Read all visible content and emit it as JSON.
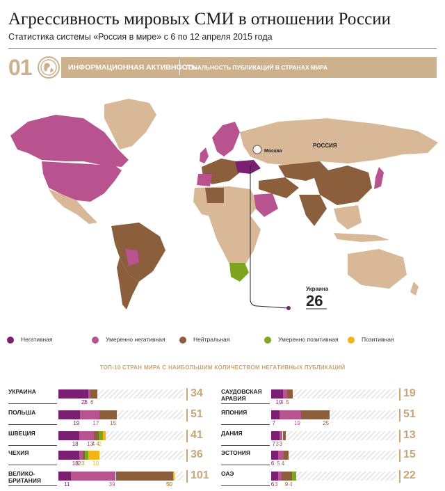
{
  "header": {
    "title": "Агрессивность мировых СМИ в отношении России",
    "subtitle": "Статистика системы «Россия в мире» с 6 по 12 апреля 2015 года"
  },
  "section": {
    "number": "01",
    "label_main": "ИНФОРМАЦИОННАЯ АКТИВНОСТЬ",
    "label_sub": "ТОНАЛЬНОСТЬ ПУБЛИКАЦИЙ В СТРАНАХ МИРА"
  },
  "map": {
    "label_moscow": "Москва",
    "label_russia": "РОССИЯ",
    "callout_country": "Украина",
    "callout_value": "26"
  },
  "legend": [
    {
      "label": "Негативная",
      "color": "#7b1f73"
    },
    {
      "label": "Умеренно негативная",
      "color": "#b8538f"
    },
    {
      "label": "Нейтральная",
      "color": "#8b5e3c"
    },
    {
      "label": "Умеренно позитивная",
      "color": "#7ea51f"
    },
    {
      "label": "Позитивная",
      "color": "#f2b519"
    }
  ],
  "chart_data": {
    "type": "bar",
    "title": "ТОП-10 СТРАН МИРА С НАИБОЛЬШИМ КОЛИЧЕСТВОМ НЕГАТИВНЫХ ПУБЛИКАЦИЙ",
    "series_names": [
      "Негативная",
      "Умеренно негативная",
      "Нейтральная",
      "Умеренно позитивная",
      "Позитивная"
    ],
    "rows": [
      {
        "country": "УКРАИНА",
        "values": [
          26,
          2,
          6,
          0,
          0
        ],
        "labels": [
          "26",
          "2",
          "6",
          "",
          ""
        ],
        "total": "34"
      },
      {
        "country": "ПОЛЬША",
        "values": [
          19,
          17,
          15,
          0,
          0
        ],
        "labels": [
          "19",
          "17",
          "15",
          "",
          ""
        ],
        "total": "51"
      },
      {
        "country": "ШВЕЦИЯ",
        "values": [
          18,
          13,
          4,
          4,
          2
        ],
        "labels": [
          "18",
          "13",
          "4",
          "4",
          "2"
        ],
        "total": "41"
      },
      {
        "country": "ЧЕХИЯ",
        "values": [
          18,
          3,
          2,
          3,
          10
        ],
        "labels": [
          "18",
          "3",
          "2",
          "3",
          "10"
        ],
        "total": "36"
      },
      {
        "country": "ВЕЛИКО-БРИТАНИЯ",
        "values": [
          11,
          39,
          50,
          0,
          1
        ],
        "labels": [
          "11",
          "39",
          "50",
          "",
          "1"
        ],
        "total": "101"
      },
      {
        "country": "САУДОВСКАЯ АРАВИЯ",
        "values": [
          10,
          4,
          5,
          0,
          0
        ],
        "labels": [
          "10",
          "4",
          "5",
          "",
          ""
        ],
        "total": "19"
      },
      {
        "country": "ЯПОНИЯ",
        "values": [
          7,
          19,
          25,
          0,
          0
        ],
        "labels": [
          "7",
          "19",
          "25",
          "",
          ""
        ],
        "total": "51"
      },
      {
        "country": "ДАНИЯ",
        "values": [
          7,
          3,
          3,
          0,
          0
        ],
        "labels": [
          "7",
          "3",
          "3",
          "",
          ""
        ],
        "total": "13"
      },
      {
        "country": "ЭСТОНИЯ",
        "values": [
          6,
          5,
          4,
          0,
          0
        ],
        "labels": [
          "6",
          "5",
          "4",
          "",
          ""
        ],
        "total": "15"
      },
      {
        "country": "ОАЭ",
        "values": [
          6,
          3,
          9,
          4,
          0
        ],
        "labels": [
          "6",
          "3",
          "9",
          "4",
          ""
        ],
        "total": "22"
      }
    ]
  }
}
